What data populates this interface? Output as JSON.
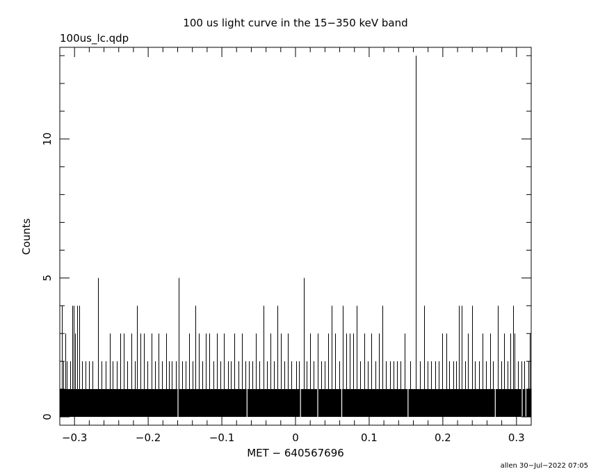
{
  "chart_data": {
    "type": "bar",
    "title": "100 us light curve in the 15−350 keV band",
    "subtitle": "100us_lc.qdp",
    "xlabel": "MET − 640567696",
    "ylabel": "Counts",
    "footer": "allen 30−Jul−2022 07:05",
    "xlim": [
      -0.32,
      0.32
    ],
    "ylim": [
      -0.3,
      13.3
    ],
    "x_ticks": [
      -0.3,
      -0.2,
      -0.1,
      0,
      0.1,
      0.2,
      0.3
    ],
    "x_tick_labels": [
      "−0.3",
      "−0.2",
      "−0.1",
      "0",
      "0.1",
      "0.2",
      "0.3"
    ],
    "y_ticks": [
      0,
      5,
      10
    ],
    "y_tick_labels": [
      "0",
      "5",
      "10"
    ],
    "baseline_counts": 1,
    "bin_width": 0.0001,
    "zero_bins_x": [
      -0.1595,
      -0.0658,
      0.0068,
      0.0302,
      0.0628,
      0.1528,
      0.2712,
      0.3078,
      0.3128
    ],
    "spikes": [
      {
        "x": -0.3173,
        "y": 4
      },
      {
        "x": -0.3155,
        "y": 2
      },
      {
        "x": -0.3124,
        "y": 3
      },
      {
        "x": -0.3102,
        "y": 2
      },
      {
        "x": -0.306,
        "y": 2
      },
      {
        "x": -0.3027,
        "y": 4
      },
      {
        "x": -0.3011,
        "y": 4
      },
      {
        "x": -0.2992,
        "y": 3
      },
      {
        "x": -0.296,
        "y": 4
      },
      {
        "x": -0.2932,
        "y": 4
      },
      {
        "x": -0.2896,
        "y": 2
      },
      {
        "x": -0.2853,
        "y": 2
      },
      {
        "x": -0.2804,
        "y": 2
      },
      {
        "x": -0.2761,
        "y": 2
      },
      {
        "x": -0.268,
        "y": 5
      },
      {
        "x": -0.2634,
        "y": 2
      },
      {
        "x": -0.2575,
        "y": 2
      },
      {
        "x": -0.252,
        "y": 3
      },
      {
        "x": -0.2481,
        "y": 2
      },
      {
        "x": -0.243,
        "y": 2
      },
      {
        "x": -0.2378,
        "y": 3
      },
      {
        "x": -0.2331,
        "y": 3
      },
      {
        "x": -0.2283,
        "y": 2
      },
      {
        "x": -0.2231,
        "y": 3
      },
      {
        "x": -0.2182,
        "y": 2
      },
      {
        "x": -0.215,
        "y": 4
      },
      {
        "x": -0.2102,
        "y": 3
      },
      {
        "x": -0.2055,
        "y": 3
      },
      {
        "x": -0.2011,
        "y": 2
      },
      {
        "x": -0.1958,
        "y": 3
      },
      {
        "x": -0.191,
        "y": 2
      },
      {
        "x": -0.1863,
        "y": 3
      },
      {
        "x": -0.1811,
        "y": 2
      },
      {
        "x": -0.176,
        "y": 3
      },
      {
        "x": -0.1716,
        "y": 2
      },
      {
        "x": -0.1677,
        "y": 2
      },
      {
        "x": -0.1625,
        "y": 2
      },
      {
        "x": -0.1588,
        "y": 5
      },
      {
        "x": -0.154,
        "y": 2
      },
      {
        "x": -0.149,
        "y": 2
      },
      {
        "x": -0.1441,
        "y": 3
      },
      {
        "x": -0.1394,
        "y": 2
      },
      {
        "x": -0.136,
        "y": 4
      },
      {
        "x": -0.1315,
        "y": 3
      },
      {
        "x": -0.1262,
        "y": 2
      },
      {
        "x": -0.1216,
        "y": 3
      },
      {
        "x": -0.1167,
        "y": 3
      },
      {
        "x": -0.1112,
        "y": 2
      },
      {
        "x": -0.1065,
        "y": 3
      },
      {
        "x": -0.1021,
        "y": 2
      },
      {
        "x": -0.097,
        "y": 3
      },
      {
        "x": -0.092,
        "y": 2
      },
      {
        "x": -0.0876,
        "y": 2
      },
      {
        "x": -0.0826,
        "y": 3
      },
      {
        "x": -0.0774,
        "y": 2
      },
      {
        "x": -0.0729,
        "y": 3
      },
      {
        "x": -0.068,
        "y": 2
      },
      {
        "x": -0.0633,
        "y": 2
      },
      {
        "x": -0.0588,
        "y": 2
      },
      {
        "x": -0.0537,
        "y": 3
      },
      {
        "x": -0.0488,
        "y": 2
      },
      {
        "x": -0.0437,
        "y": 4
      },
      {
        "x": -0.039,
        "y": 2
      },
      {
        "x": -0.0341,
        "y": 3
      },
      {
        "x": -0.0293,
        "y": 2
      },
      {
        "x": -0.0243,
        "y": 4
      },
      {
        "x": -0.0195,
        "y": 3
      },
      {
        "x": -0.0148,
        "y": 2
      },
      {
        "x": -0.0101,
        "y": 3
      },
      {
        "x": -0.0053,
        "y": 2
      },
      {
        "x": 0.0012,
        "y": 2
      },
      {
        "x": 0.005,
        "y": 2
      },
      {
        "x": 0.0115,
        "y": 5
      },
      {
        "x": 0.015,
        "y": 2
      },
      {
        "x": 0.0201,
        "y": 3
      },
      {
        "x": 0.025,
        "y": 2
      },
      {
        "x": 0.0305,
        "y": 3
      },
      {
        "x": 0.035,
        "y": 2
      },
      {
        "x": 0.0401,
        "y": 2
      },
      {
        "x": 0.0443,
        "y": 3
      },
      {
        "x": 0.0495,
        "y": 4
      },
      {
        "x": 0.054,
        "y": 3
      },
      {
        "x": 0.059,
        "y": 2
      },
      {
        "x": 0.0645,
        "y": 4
      },
      {
        "x": 0.0688,
        "y": 3
      },
      {
        "x": 0.074,
        "y": 3
      },
      {
        "x": 0.0785,
        "y": 3
      },
      {
        "x": 0.083,
        "y": 4
      },
      {
        "x": 0.0882,
        "y": 2
      },
      {
        "x": 0.0935,
        "y": 3
      },
      {
        "x": 0.098,
        "y": 2
      },
      {
        "x": 0.103,
        "y": 3
      },
      {
        "x": 0.1085,
        "y": 2
      },
      {
        "x": 0.113,
        "y": 3
      },
      {
        "x": 0.1178,
        "y": 4
      },
      {
        "x": 0.1225,
        "y": 2
      },
      {
        "x": 0.128,
        "y": 2
      },
      {
        "x": 0.133,
        "y": 2
      },
      {
        "x": 0.1375,
        "y": 2
      },
      {
        "x": 0.143,
        "y": 2
      },
      {
        "x": 0.148,
        "y": 3
      },
      {
        "x": 0.156,
        "y": 2
      },
      {
        "x": 0.163,
        "y": 13
      },
      {
        "x": 0.169,
        "y": 2
      },
      {
        "x": 0.1745,
        "y": 4
      },
      {
        "x": 0.179,
        "y": 2
      },
      {
        "x": 0.184,
        "y": 2
      },
      {
        "x": 0.1895,
        "y": 2
      },
      {
        "x": 0.1945,
        "y": 2
      },
      {
        "x": 0.199,
        "y": 3
      },
      {
        "x": 0.2045,
        "y": 3
      },
      {
        "x": 0.209,
        "y": 2
      },
      {
        "x": 0.214,
        "y": 2
      },
      {
        "x": 0.2185,
        "y": 2
      },
      {
        "x": 0.222,
        "y": 4
      },
      {
        "x": 0.2255,
        "y": 4
      },
      {
        "x": 0.23,
        "y": 2
      },
      {
        "x": 0.234,
        "y": 3
      },
      {
        "x": 0.2395,
        "y": 4
      },
      {
        "x": 0.244,
        "y": 2
      },
      {
        "x": 0.249,
        "y": 2
      },
      {
        "x": 0.2535,
        "y": 3
      },
      {
        "x": 0.259,
        "y": 2
      },
      {
        "x": 0.264,
        "y": 3
      },
      {
        "x": 0.2685,
        "y": 2
      },
      {
        "x": 0.2745,
        "y": 4
      },
      {
        "x": 0.279,
        "y": 2
      },
      {
        "x": 0.2835,
        "y": 3
      },
      {
        "x": 0.288,
        "y": 2
      },
      {
        "x": 0.292,
        "y": 3
      },
      {
        "x": 0.2955,
        "y": 4
      },
      {
        "x": 0.2975,
        "y": 3
      },
      {
        "x": 0.302,
        "y": 2
      },
      {
        "x": 0.3065,
        "y": 2
      },
      {
        "x": 0.311,
        "y": 2
      },
      {
        "x": 0.316,
        "y": 2
      },
      {
        "x": 0.3185,
        "y": 3
      }
    ]
  }
}
